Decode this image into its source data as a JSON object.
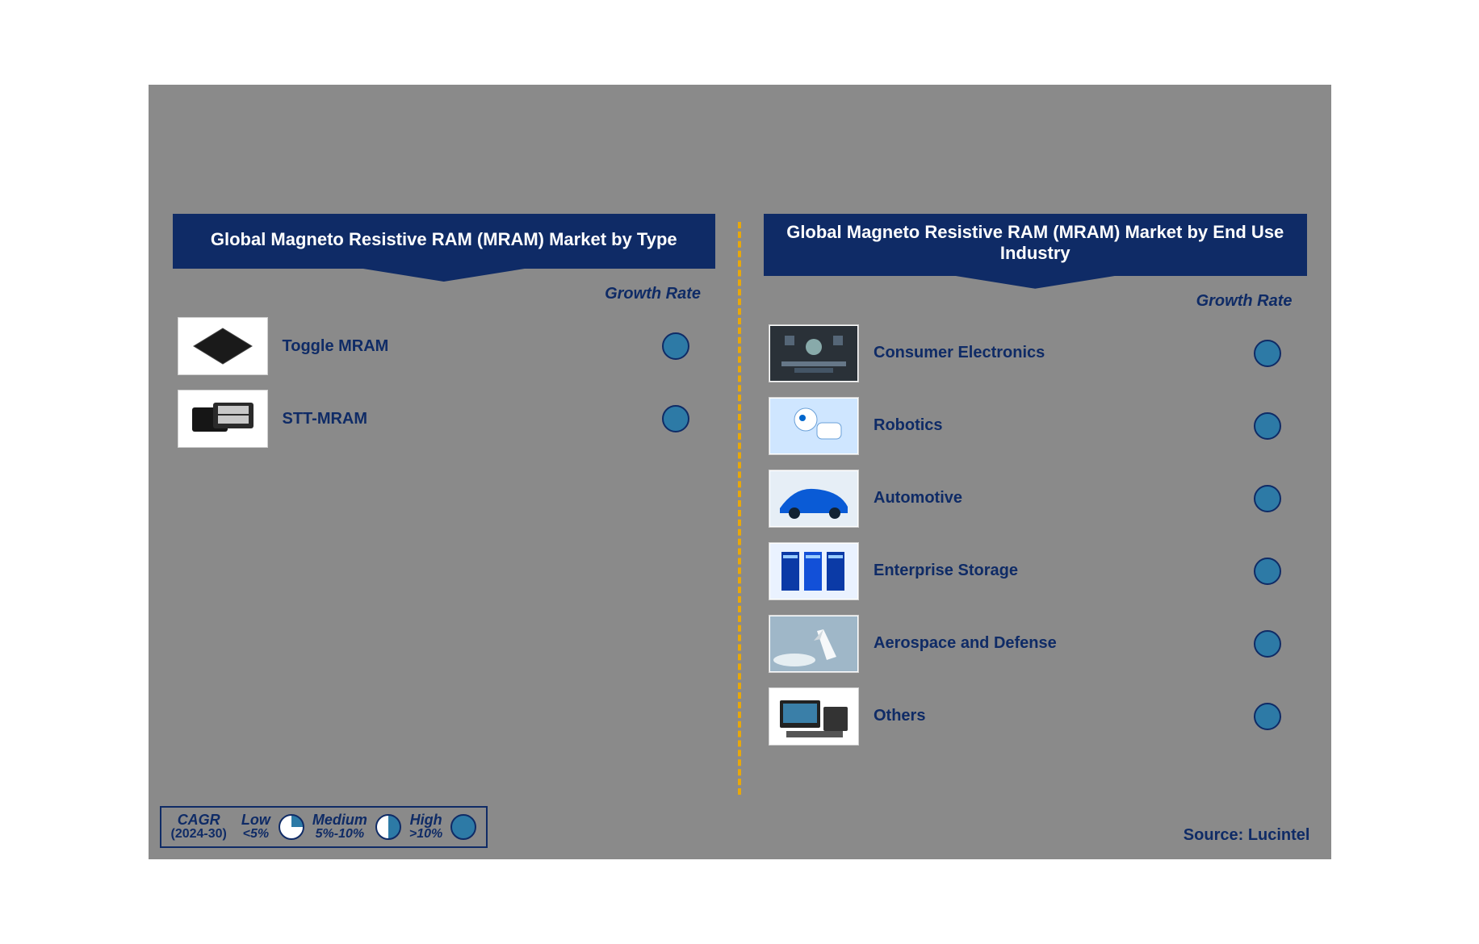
{
  "colors": {
    "page_bg": "#8a8a8a",
    "header_bg": "#0f2b66",
    "text_navy": "#0f2b66",
    "growth_dot": "#2d7aa6",
    "divider": "#e8a80a",
    "legend_border": "#0f2b66",
    "white": "#ffffff"
  },
  "fonts": {
    "family": "Arial, Helvetica, sans-serif",
    "title_size_pt": 16,
    "label_size_pt": 15,
    "growth_label_size_pt": 15,
    "legend_size_pt": 13
  },
  "left_panel": {
    "title": "Global Magneto Resistive RAM (MRAM) Market by Type",
    "growth_label": "Growth Rate",
    "items": [
      {
        "label": "Toggle MRAM",
        "growth": "high",
        "icon": "chip-black"
      },
      {
        "label": "STT-MRAM",
        "growth": "high",
        "icon": "chip-cards"
      }
    ]
  },
  "right_panel": {
    "title": "Global Magneto Resistive RAM (MRAM) Market by End Use Industry",
    "growth_label": "Growth Rate",
    "items": [
      {
        "label": "Consumer Electronics",
        "growth": "high",
        "icon": "consumer-electronics"
      },
      {
        "label": "Robotics",
        "growth": "high",
        "icon": "robotics"
      },
      {
        "label": "Automotive",
        "growth": "high",
        "icon": "automotive"
      },
      {
        "label": "Enterprise Storage",
        "growth": "high",
        "icon": "enterprise-storage"
      },
      {
        "label": "Aerospace and Defense",
        "growth": "high",
        "icon": "aerospace"
      },
      {
        "label": "Others",
        "growth": "high",
        "icon": "others"
      }
    ]
  },
  "legend": {
    "cagr_label_top": "CAGR",
    "cagr_label_bottom": "(2024-30)",
    "items": [
      {
        "name": "Low",
        "range": "<5%",
        "fill_pct": 25
      },
      {
        "name": "Medium",
        "range": "5%-10%",
        "fill_pct": 50
      },
      {
        "name": "High",
        "range": ">10%",
        "fill_pct": 100
      }
    ],
    "pie_fill_color": "#2d7aa6",
    "pie_bg_color": "#ffffff"
  },
  "source": "Source: Lucintel"
}
